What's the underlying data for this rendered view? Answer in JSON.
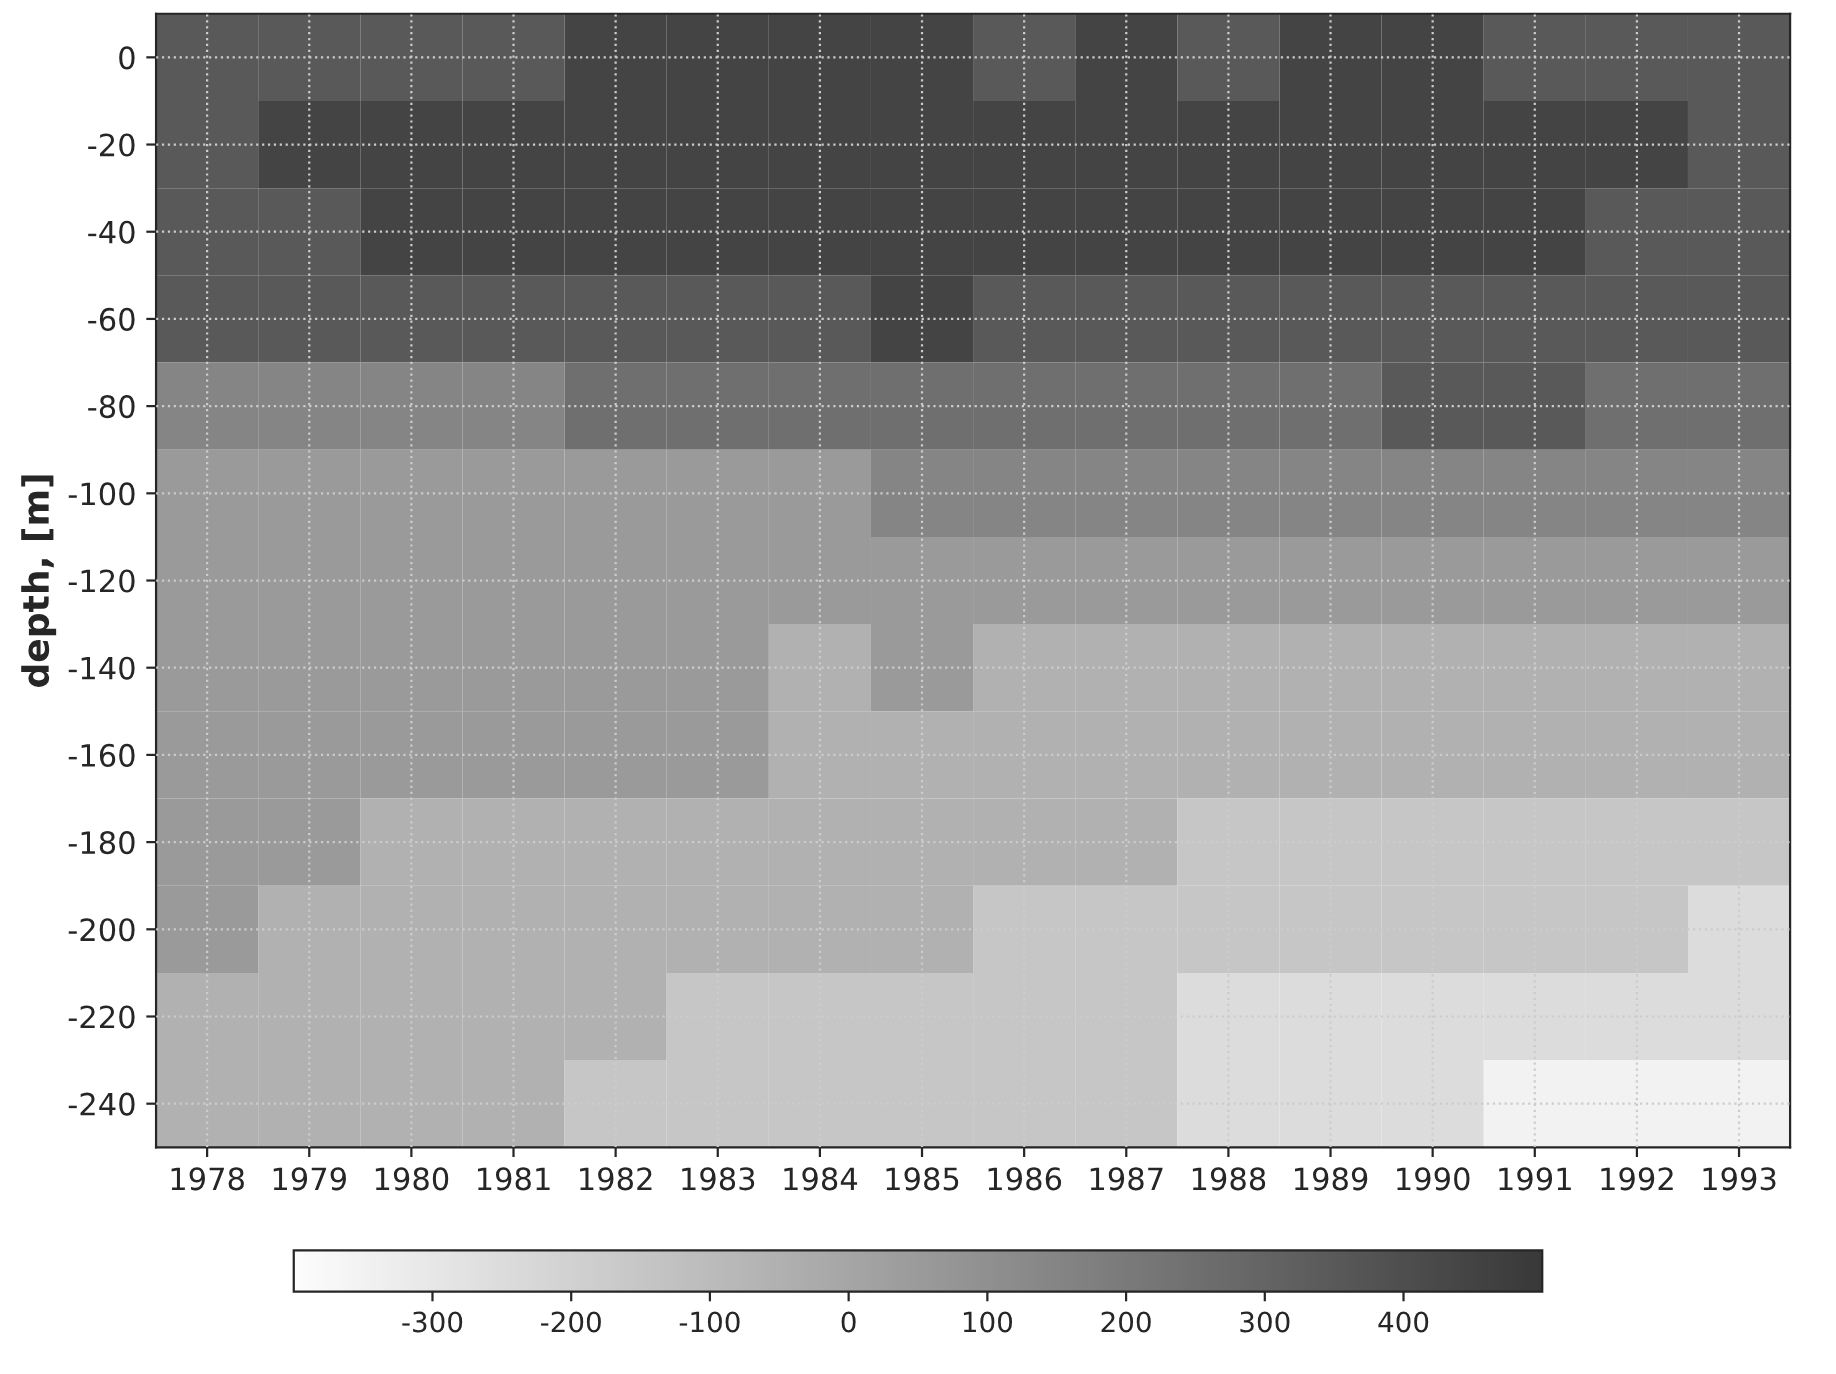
{
  "chart_data": {
    "type": "heatmap",
    "ylabel": "depth, [m]",
    "categories": [
      "1978",
      "1979",
      "1980",
      "1981",
      "1982",
      "1983",
      "1984",
      "1985",
      "1986",
      "1987",
      "1988",
      "1989",
      "1990",
      "1991",
      "1992",
      "1993"
    ],
    "y_categories": [
      "0",
      "-20",
      "-40",
      "-60",
      "-80",
      "-100",
      "-120",
      "-140",
      "-160",
      "-180",
      "-200",
      "-220",
      "-240"
    ],
    "cells": [
      [
        350,
        350,
        350,
        350,
        450,
        450,
        450,
        450,
        350,
        450,
        350,
        450,
        450,
        350,
        350,
        350
      ],
      [
        350,
        450,
        450,
        450,
        450,
        450,
        450,
        450,
        450,
        450,
        450,
        450,
        450,
        450,
        450,
        350
      ],
      [
        350,
        350,
        450,
        450,
        450,
        450,
        450,
        450,
        450,
        450,
        450,
        450,
        450,
        450,
        350,
        350
      ],
      [
        350,
        350,
        350,
        350,
        350,
        350,
        350,
        450,
        350,
        350,
        350,
        350,
        350,
        350,
        350,
        350
      ],
      [
        150,
        150,
        150,
        150,
        250,
        250,
        250,
        250,
        250,
        250,
        250,
        250,
        350,
        350,
        250,
        250
      ],
      [
        50,
        50,
        50,
        50,
        50,
        50,
        50,
        150,
        150,
        150,
        150,
        150,
        150,
        150,
        150,
        150
      ],
      [
        50,
        50,
        50,
        50,
        50,
        50,
        50,
        50,
        50,
        50,
        50,
        50,
        50,
        50,
        50,
        50
      ],
      [
        50,
        50,
        50,
        50,
        50,
        50,
        -50,
        50,
        -50,
        -50,
        -50,
        -50,
        -50,
        -50,
        -50,
        -50
      ],
      [
        50,
        50,
        50,
        50,
        50,
        50,
        -50,
        -50,
        -50,
        -50,
        -50,
        -50,
        -50,
        -50,
        -50,
        -50
      ],
      [
        50,
        50,
        -50,
        -50,
        -50,
        -50,
        -50,
        -50,
        -50,
        -50,
        -150,
        -150,
        -150,
        -150,
        -150,
        -150
      ],
      [
        50,
        -50,
        -50,
        -50,
        -50,
        -50,
        -50,
        -50,
        -150,
        -150,
        -150,
        -150,
        -150,
        -150,
        -150,
        -250
      ],
      [
        -50,
        -50,
        -50,
        -50,
        -50,
        -150,
        -150,
        -150,
        -150,
        -150,
        -250,
        -250,
        -250,
        -250,
        -250,
        -250
      ],
      [
        -50,
        -50,
        -50,
        -50,
        -150,
        -150,
        -150,
        -150,
        -150,
        -150,
        -250,
        -250,
        -250,
        -350,
        -350,
        -350
      ]
    ],
    "clim": [
      -400,
      500
    ],
    "cticks": [
      -300,
      -200,
      -100,
      0,
      100,
      200,
      300,
      400
    ],
    "grid": true
  }
}
